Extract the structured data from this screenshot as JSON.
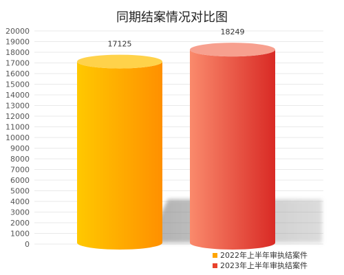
{
  "chart_data": {
    "type": "bar",
    "title": "同期结案情况对比图",
    "categories": [
      "2022年上半年审执结案件",
      "2023年上半年审执结案件"
    ],
    "values": [
      17125,
      18249
    ],
    "data_labels": [
      "17125",
      "18249"
    ],
    "ylim": [
      0,
      20000
    ],
    "ytick_step": 1000,
    "yticks": [
      "0",
      "1000",
      "2000",
      "3000",
      "4000",
      "5000",
      "6000",
      "7000",
      "8000",
      "9000",
      "10000",
      "11000",
      "12000",
      "13000",
      "14000",
      "15000",
      "16000",
      "17000",
      "18000",
      "19000",
      "20000"
    ],
    "grid": true,
    "legend_position": "bottom-right",
    "colors": {
      "bar_2022_light": "#ffc400",
      "bar_2022_dark": "#ff9000",
      "bar_2022_top": "#ffd24a",
      "bar_2023_light": "#fa8a6c",
      "bar_2023_dark": "#d92a25",
      "bar_2023_top": "#f7a08f",
      "legend_2022": "#ffa500",
      "legend_2023": "#e8422c",
      "grid": "#e9e9e9",
      "axis_text": "#555555"
    }
  }
}
